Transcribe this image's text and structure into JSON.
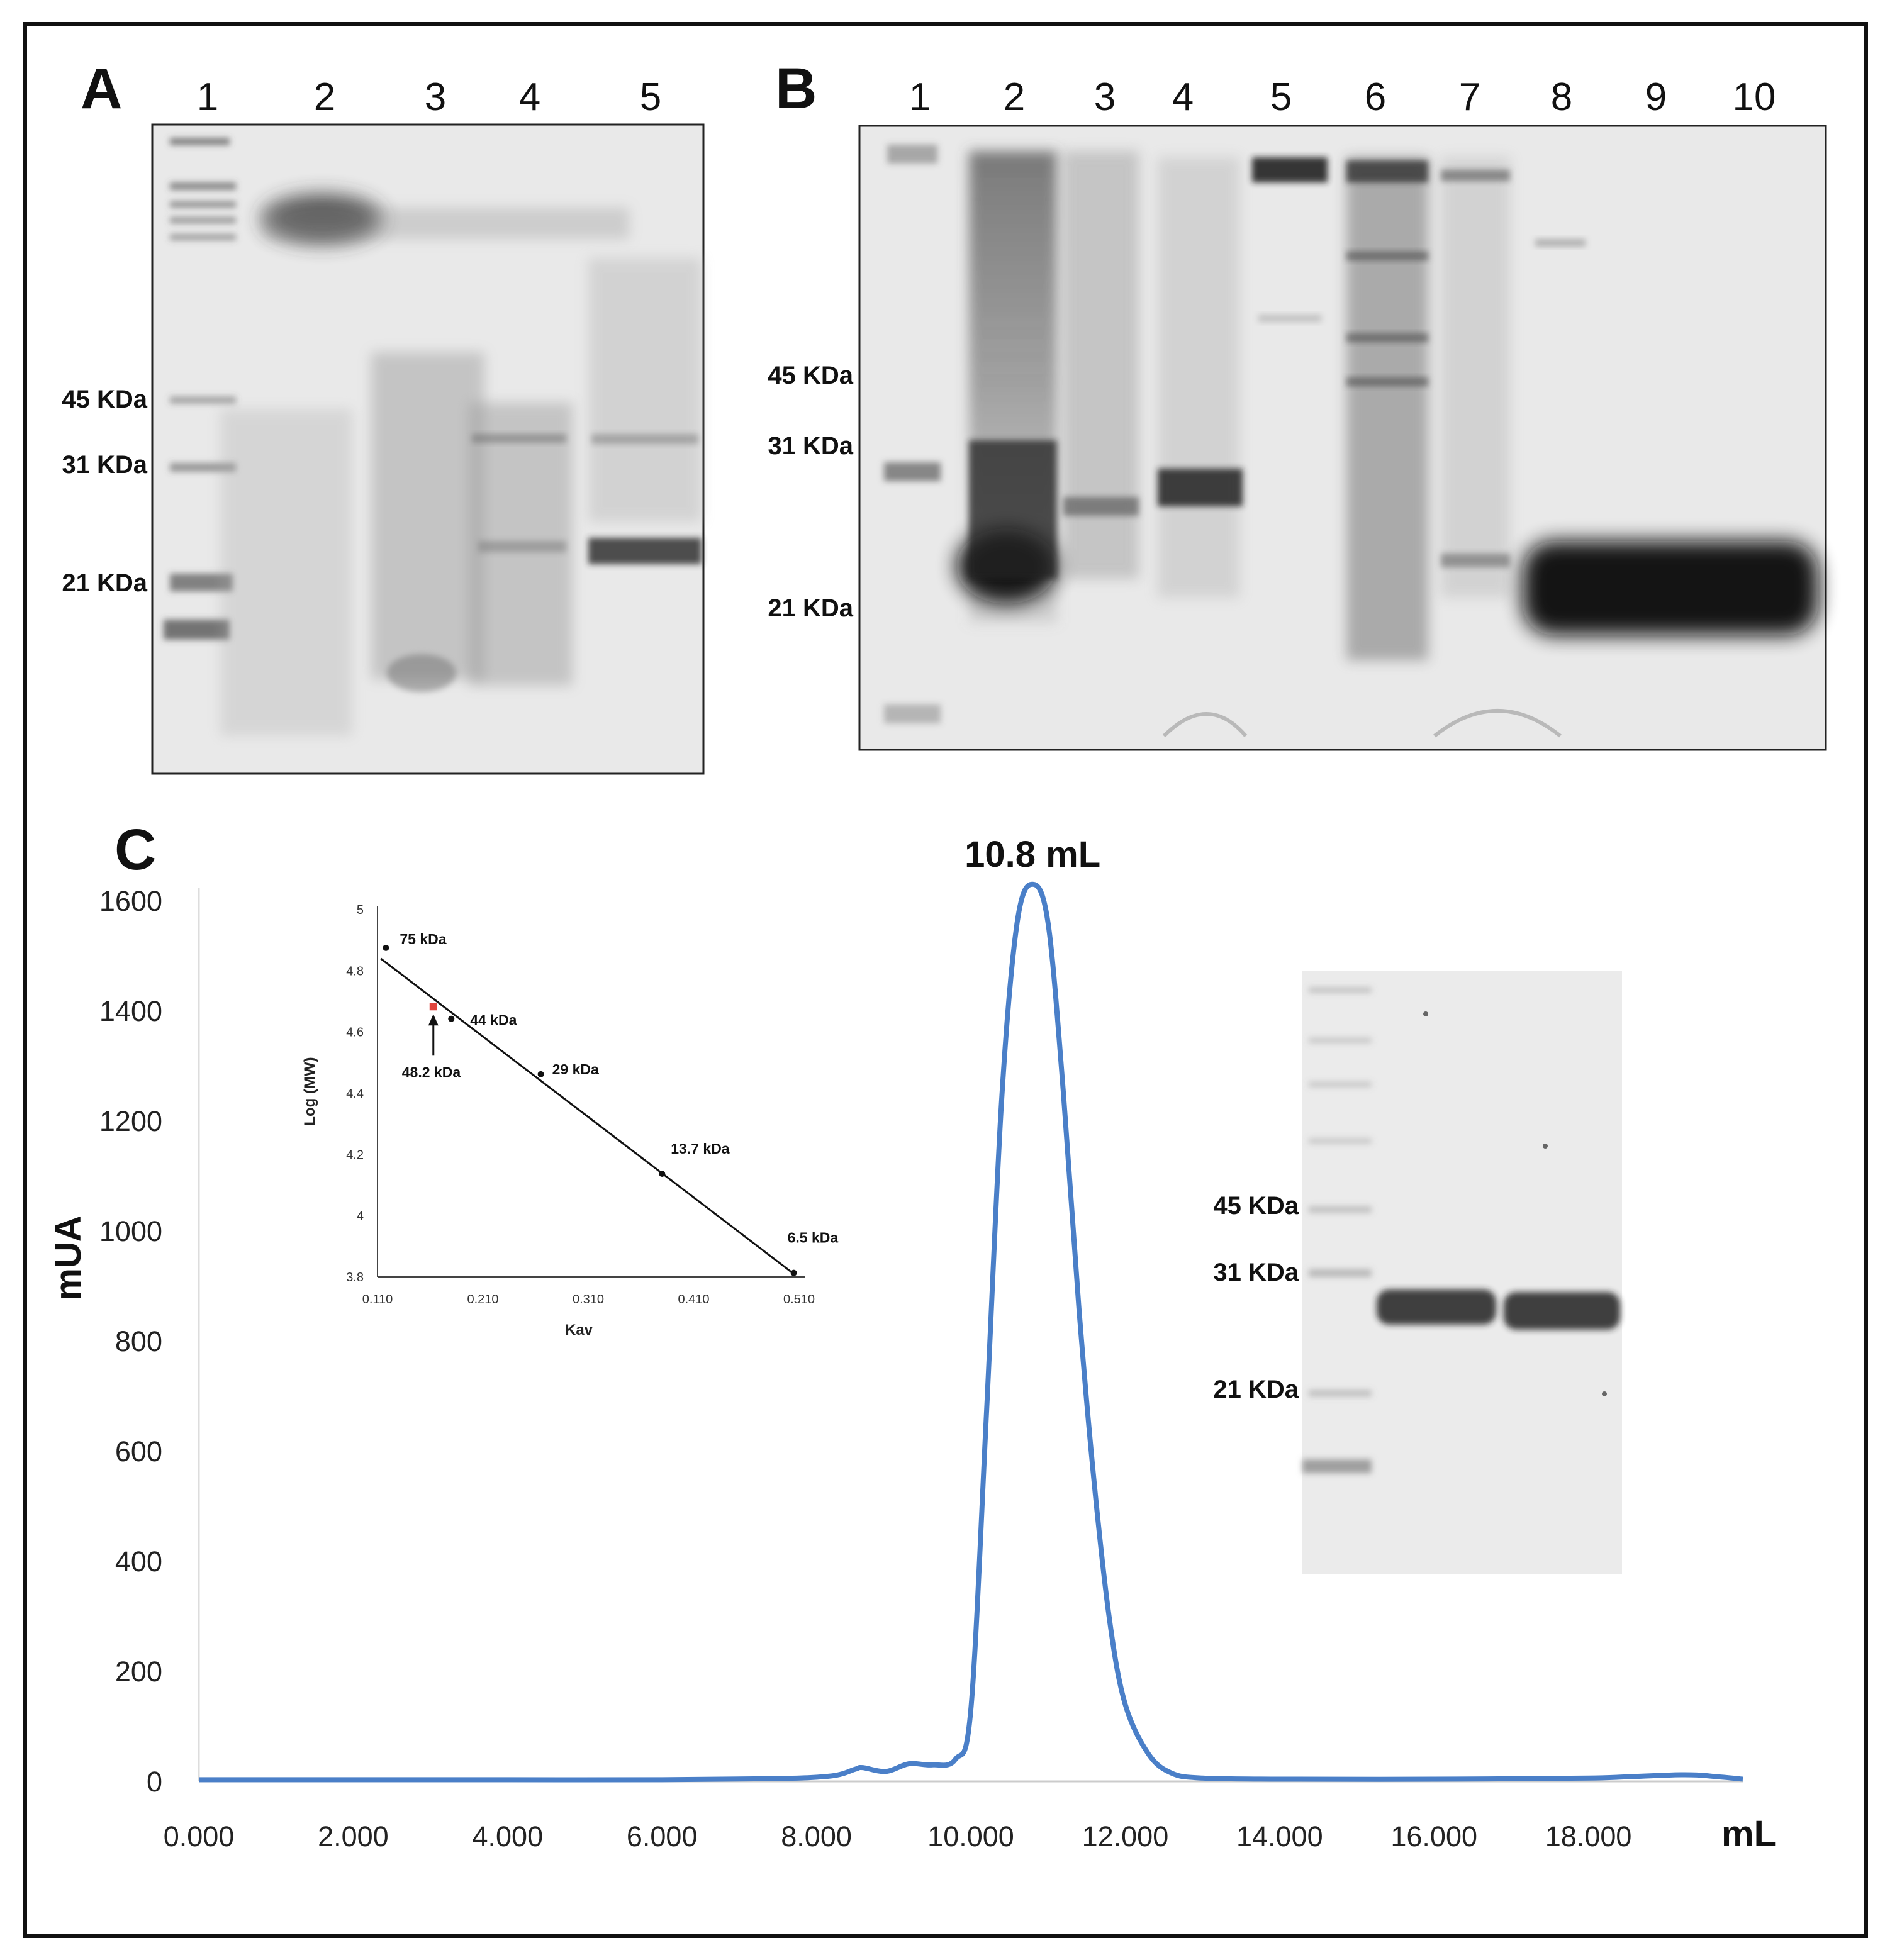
{
  "panels": {
    "a": {
      "letter": "A",
      "lanes": [
        "1",
        "2",
        "3",
        "4",
        "5"
      ],
      "markers": [
        "45 KDa",
        "31 KDa",
        "21 KDa"
      ]
    },
    "b": {
      "letter": "B",
      "lanes": [
        "1",
        "2",
        "3",
        "4",
        "5",
        "6",
        "7",
        "8",
        "9",
        "10"
      ],
      "markers": [
        "45 KDa",
        "31 KDa",
        "21 KDa"
      ]
    },
    "c": {
      "letter": "C",
      "gel_markers": [
        "45 KDa",
        "31 KDa",
        "21 KDa"
      ]
    }
  },
  "chart_data": [
    {
      "type": "line",
      "xlabel": "mL",
      "ylabel": "mUA",
      "xlim": [
        0,
        20
      ],
      "ylim": [
        0,
        1600
      ],
      "x_ticks": [
        "0.000",
        "2.000",
        "4.000",
        "6.000",
        "8.000",
        "10.000",
        "12.000",
        "14.000",
        "16.000",
        "18.000"
      ],
      "y_ticks": [
        "0",
        "200",
        "400",
        "600",
        "800",
        "1000",
        "1200",
        "1400",
        "1600"
      ],
      "annotation": "10.8 mL",
      "color": "#4a7fc8",
      "x": [
        0,
        2,
        4,
        6,
        7.5,
        8.2,
        8.5,
        8.6,
        8.9,
        9.2,
        9.5,
        9.8,
        10.0,
        10.2,
        10.4,
        10.6,
        10.8,
        11.0,
        11.2,
        11.4,
        11.6,
        11.8,
        12.0,
        12.3,
        12.6,
        13.0,
        14,
        16,
        18,
        19.2,
        19.7,
        20
      ],
      "y": [
        3,
        3,
        3,
        3,
        5,
        10,
        22,
        25,
        18,
        32,
        30,
        40,
        130,
        660,
        1240,
        1560,
        1630,
        1560,
        1250,
        860,
        540,
        290,
        140,
        50,
        15,
        6,
        4,
        4,
        6,
        12,
        8,
        4
      ]
    },
    {
      "type": "scatter",
      "xlabel": "Kav",
      "ylabel": "Log (MW)",
      "xlim": [
        0.11,
        0.51
      ],
      "ylim": [
        3.8,
        5
      ],
      "x_ticks": [
        "0.110",
        "0.210",
        "0.310",
        "0.410",
        "0.510"
      ],
      "y_ticks": [
        "3.8",
        "4",
        "4.2",
        "4.4",
        "4.6",
        "4.8",
        "5"
      ],
      "points": [
        {
          "label": "75 kDa",
          "x": 0.118,
          "y": 4.875
        },
        {
          "label": "44 kDa",
          "x": 0.18,
          "y": 4.643
        },
        {
          "label": "29 kDa",
          "x": 0.265,
          "y": 4.462
        },
        {
          "label": "13.7 kDa",
          "x": 0.38,
          "y": 4.137
        },
        {
          "label": "6.5 kDa",
          "x": 0.505,
          "y": 3.813
        }
      ],
      "estimate": {
        "label": "48.2 kDa",
        "x": 0.163,
        "y": 4.683
      },
      "fit_line": {
        "x": [
          0.113,
          0.505
        ],
        "y": [
          4.84,
          3.81
        ]
      }
    }
  ]
}
